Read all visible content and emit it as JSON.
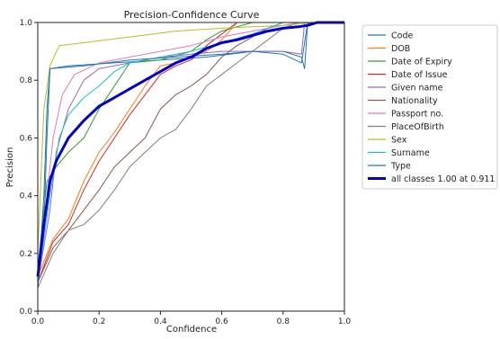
{
  "chart_data": {
    "type": "line",
    "title": "Precision-Confidence Curve",
    "xlabel": "Confidence",
    "ylabel": "Precision",
    "xlim": [
      0.0,
      1.0
    ],
    "ylim": [
      0.0,
      1.0
    ],
    "xticks": [
      "0.0",
      "0.2",
      "0.4",
      "0.6",
      "0.8",
      "1.0"
    ],
    "yticks": [
      "0.0",
      "0.2",
      "0.4",
      "0.6",
      "0.8",
      "1.0"
    ],
    "grid": false,
    "legend_placement": "outside-right",
    "series": [
      {
        "name": "Code",
        "color": "#1f77b4",
        "points": [
          [
            0.0,
            0.08
          ],
          [
            0.02,
            0.3
          ],
          [
            0.03,
            0.6
          ],
          [
            0.04,
            0.84
          ],
          [
            0.1,
            0.85
          ],
          [
            0.25,
            0.86
          ],
          [
            0.4,
            0.87
          ],
          [
            0.55,
            0.88
          ],
          [
            0.7,
            0.9
          ],
          [
            0.8,
            0.9
          ],
          [
            0.86,
            0.88
          ],
          [
            0.87,
            0.84
          ],
          [
            0.88,
            1.0
          ],
          [
            1.0,
            1.0
          ]
        ]
      },
      {
        "name": "DOB",
        "color": "#ff7f0e",
        "points": [
          [
            0.0,
            0.12
          ],
          [
            0.05,
            0.25
          ],
          [
            0.1,
            0.32
          ],
          [
            0.15,
            0.45
          ],
          [
            0.2,
            0.55
          ],
          [
            0.25,
            0.62
          ],
          [
            0.3,
            0.7
          ],
          [
            0.35,
            0.78
          ],
          [
            0.4,
            0.85
          ],
          [
            0.45,
            0.86
          ],
          [
            0.5,
            0.88
          ],
          [
            0.55,
            0.9
          ],
          [
            0.6,
            0.94
          ],
          [
            0.65,
            1.0
          ],
          [
            1.0,
            1.0
          ]
        ]
      },
      {
        "name": "Date of Expiry",
        "color": "#2ca02c",
        "points": [
          [
            0.0,
            0.15
          ],
          [
            0.03,
            0.45
          ],
          [
            0.06,
            0.5
          ],
          [
            0.1,
            0.55
          ],
          [
            0.15,
            0.6
          ],
          [
            0.2,
            0.7
          ],
          [
            0.25,
            0.78
          ],
          [
            0.3,
            0.86
          ],
          [
            0.4,
            0.87
          ],
          [
            0.5,
            0.9
          ],
          [
            0.55,
            0.94
          ],
          [
            0.6,
            0.97
          ],
          [
            0.7,
            1.0
          ],
          [
            1.0,
            1.0
          ]
        ]
      },
      {
        "name": "Date of Issue",
        "color": "#d62728",
        "points": [
          [
            0.0,
            0.1
          ],
          [
            0.05,
            0.24
          ],
          [
            0.1,
            0.3
          ],
          [
            0.15,
            0.42
          ],
          [
            0.2,
            0.52
          ],
          [
            0.25,
            0.6
          ],
          [
            0.3,
            0.68
          ],
          [
            0.35,
            0.75
          ],
          [
            0.4,
            0.82
          ],
          [
            0.45,
            0.85
          ],
          [
            0.5,
            0.87
          ],
          [
            0.55,
            0.92
          ],
          [
            0.6,
            0.96
          ],
          [
            0.65,
            1.0
          ],
          [
            1.0,
            1.0
          ]
        ]
      },
      {
        "name": "Given name",
        "color": "#9467bd",
        "points": [
          [
            0.0,
            0.1
          ],
          [
            0.04,
            0.35
          ],
          [
            0.06,
            0.55
          ],
          [
            0.1,
            0.7
          ],
          [
            0.15,
            0.8
          ],
          [
            0.2,
            0.84
          ],
          [
            0.3,
            0.86
          ],
          [
            0.4,
            0.88
          ],
          [
            0.5,
            0.89
          ],
          [
            0.6,
            0.9
          ],
          [
            0.7,
            0.9
          ],
          [
            0.8,
            0.9
          ],
          [
            0.86,
            0.89
          ],
          [
            0.87,
            1.0
          ],
          [
            1.0,
            1.0
          ]
        ]
      },
      {
        "name": "Nationality",
        "color": "#8c564b",
        "points": [
          [
            0.0,
            0.1
          ],
          [
            0.05,
            0.22
          ],
          [
            0.1,
            0.28
          ],
          [
            0.15,
            0.35
          ],
          [
            0.2,
            0.42
          ],
          [
            0.25,
            0.5
          ],
          [
            0.3,
            0.55
          ],
          [
            0.35,
            0.6
          ],
          [
            0.4,
            0.7
          ],
          [
            0.45,
            0.75
          ],
          [
            0.5,
            0.78
          ],
          [
            0.55,
            0.82
          ],
          [
            0.6,
            0.88
          ],
          [
            0.65,
            0.92
          ],
          [
            0.7,
            0.95
          ],
          [
            0.75,
            0.98
          ],
          [
            0.8,
            1.0
          ],
          [
            1.0,
            1.0
          ]
        ]
      },
      {
        "name": "Passport no.",
        "color": "#e377c2",
        "points": [
          [
            0.0,
            0.1
          ],
          [
            0.03,
            0.4
          ],
          [
            0.05,
            0.6
          ],
          [
            0.08,
            0.75
          ],
          [
            0.12,
            0.82
          ],
          [
            0.2,
            0.86
          ],
          [
            0.3,
            0.88
          ],
          [
            0.4,
            0.9
          ],
          [
            0.5,
            0.92
          ],
          [
            0.6,
            0.95
          ],
          [
            0.7,
            0.97
          ],
          [
            0.8,
            0.99
          ],
          [
            0.85,
            1.0
          ],
          [
            1.0,
            1.0
          ]
        ]
      },
      {
        "name": "PlaceOfBirth",
        "color": "#7f7f7f",
        "points": [
          [
            0.0,
            0.08
          ],
          [
            0.05,
            0.2
          ],
          [
            0.1,
            0.28
          ],
          [
            0.15,
            0.3
          ],
          [
            0.2,
            0.35
          ],
          [
            0.25,
            0.42
          ],
          [
            0.3,
            0.5
          ],
          [
            0.35,
            0.55
          ],
          [
            0.4,
            0.6
          ],
          [
            0.45,
            0.63
          ],
          [
            0.5,
            0.7
          ],
          [
            0.55,
            0.78
          ],
          [
            0.6,
            0.82
          ],
          [
            0.65,
            0.86
          ],
          [
            0.7,
            0.9
          ],
          [
            0.75,
            0.94
          ],
          [
            0.8,
            0.98
          ],
          [
            0.85,
            1.0
          ],
          [
            1.0,
            1.0
          ]
        ]
      },
      {
        "name": "Sex",
        "color": "#bcbd22",
        "points": [
          [
            0.0,
            0.2
          ],
          [
            0.02,
            0.7
          ],
          [
            0.04,
            0.85
          ],
          [
            0.07,
            0.92
          ],
          [
            0.15,
            0.93
          ],
          [
            0.3,
            0.95
          ],
          [
            0.45,
            0.97
          ],
          [
            0.6,
            0.98
          ],
          [
            0.8,
            0.99
          ],
          [
            0.9,
            1.0
          ],
          [
            1.0,
            1.0
          ]
        ]
      },
      {
        "name": "Surname",
        "color": "#17becf",
        "points": [
          [
            0.0,
            0.1
          ],
          [
            0.04,
            0.4
          ],
          [
            0.07,
            0.6
          ],
          [
            0.1,
            0.68
          ],
          [
            0.15,
            0.74
          ],
          [
            0.2,
            0.78
          ],
          [
            0.25,
            0.83
          ],
          [
            0.3,
            0.86
          ],
          [
            0.4,
            0.88
          ],
          [
            0.5,
            0.9
          ],
          [
            0.6,
            0.93
          ],
          [
            0.7,
            0.96
          ],
          [
            0.8,
            1.0
          ],
          [
            1.0,
            1.0
          ]
        ]
      },
      {
        "name": "Type",
        "color": "#1f77b4",
        "points": [
          [
            0.0,
            0.08
          ],
          [
            0.02,
            0.4
          ],
          [
            0.03,
            0.7
          ],
          [
            0.04,
            0.84
          ],
          [
            0.15,
            0.85
          ],
          [
            0.3,
            0.87
          ],
          [
            0.45,
            0.88
          ],
          [
            0.6,
            0.89
          ],
          [
            0.7,
            0.9
          ],
          [
            0.8,
            0.89
          ],
          [
            0.86,
            0.86
          ],
          [
            0.88,
            1.0
          ],
          [
            1.0,
            1.0
          ]
        ]
      },
      {
        "name": "all classes 1.00 at 0.911",
        "color": "#0000cc",
        "bold": true,
        "points": [
          [
            0.0,
            0.12
          ],
          [
            0.02,
            0.3
          ],
          [
            0.04,
            0.45
          ],
          [
            0.06,
            0.52
          ],
          [
            0.1,
            0.6
          ],
          [
            0.15,
            0.66
          ],
          [
            0.2,
            0.71
          ],
          [
            0.25,
            0.74
          ],
          [
            0.3,
            0.77
          ],
          [
            0.35,
            0.8
          ],
          [
            0.4,
            0.83
          ],
          [
            0.45,
            0.86
          ],
          [
            0.5,
            0.88
          ],
          [
            0.55,
            0.91
          ],
          [
            0.6,
            0.93
          ],
          [
            0.65,
            0.94
          ],
          [
            0.7,
            0.955
          ],
          [
            0.75,
            0.97
          ],
          [
            0.8,
            0.98
          ],
          [
            0.85,
            0.985
          ],
          [
            0.88,
            0.99
          ],
          [
            0.911,
            1.0
          ],
          [
            1.0,
            1.0
          ]
        ]
      }
    ]
  }
}
